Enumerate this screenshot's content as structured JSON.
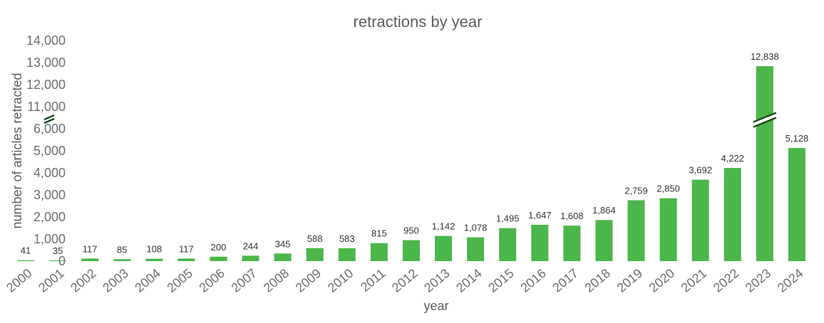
{
  "chart_data": {
    "type": "bar",
    "title": "retractions by year",
    "xlabel": "year",
    "ylabel": "number of articles retracted",
    "categories": [
      "2000",
      "2001",
      "2002",
      "2003",
      "2004",
      "2005",
      "2006",
      "2007",
      "2008",
      "2009",
      "2010",
      "2011",
      "2012",
      "2013",
      "2014",
      "2015",
      "2016",
      "2017",
      "2018",
      "2019",
      "2020",
      "2021",
      "2022",
      "2023",
      "2024"
    ],
    "values": [
      41,
      35,
      117,
      85,
      108,
      117,
      200,
      244,
      345,
      588,
      583,
      815,
      950,
      1142,
      1078,
      1495,
      1647,
      1608,
      1864,
      2759,
      2850,
      3692,
      4222,
      12838,
      5128
    ],
    "data_labels": [
      "41",
      "35",
      "117",
      "85",
      "108",
      "117",
      "200",
      "244",
      "345",
      "588",
      "583",
      "815",
      "950",
      "1,142",
      "1,078",
      "1,495",
      "1,647",
      "1,608",
      "1,864",
      "2,759",
      "2,850",
      "3,692",
      "4,222",
      "12,838",
      "5,128"
    ],
    "y_ticks": [
      0,
      1000,
      2000,
      3000,
      4000,
      5000,
      6000,
      11000,
      12000,
      13000,
      14000
    ],
    "y_tick_labels": [
      "0",
      "1,000",
      "2,000",
      "3,000",
      "4,000",
      "5,000",
      "6,000",
      "11,000",
      "12,000",
      "13,000",
      "14,000"
    ],
    "axis_break": [
      6000,
      11000
    ],
    "ylim": [
      0,
      14000
    ],
    "grid": false,
    "bar_color": "#4bb64a",
    "break_color": "#1d4d1f"
  }
}
